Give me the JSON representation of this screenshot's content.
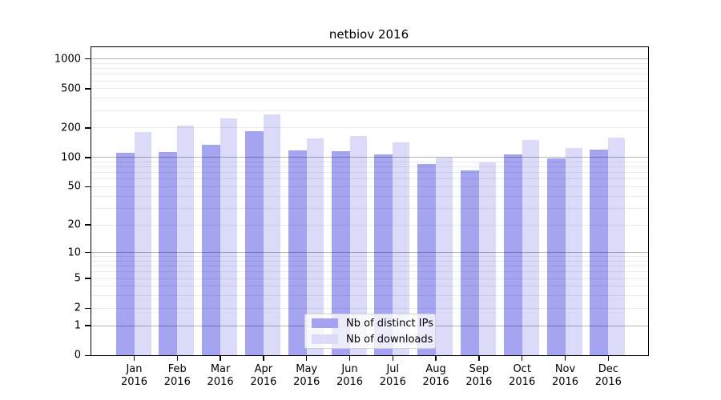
{
  "chart_data": {
    "type": "bar",
    "title": "netbiov 2016",
    "categories": [
      "Jan",
      "Feb",
      "Mar",
      "Apr",
      "May",
      "Jun",
      "Jul",
      "Aug",
      "Sep",
      "Oct",
      "Nov",
      "Dec"
    ],
    "category_year": "2016",
    "series": [
      {
        "name": "Nb of distinct IPs",
        "color": "#a4a4f0",
        "values": [
          110,
          114,
          135,
          184,
          117,
          115,
          107,
          85,
          73,
          106,
          97,
          119
        ]
      },
      {
        "name": "Nb of downloads",
        "color": "#dbdbf9",
        "values": [
          180,
          210,
          250,
          273,
          156,
          164,
          142,
          99,
          88,
          149,
          123,
          157
        ]
      }
    ],
    "y_axis": {
      "scale": "log10(1+y)",
      "ticks": [
        0,
        1,
        2,
        5,
        10,
        20,
        50,
        100,
        200,
        500,
        1000
      ],
      "range": [
        0,
        1300
      ],
      "major_gridline_values": [
        1,
        10,
        100,
        1000
      ],
      "grid": true
    },
    "legend": {
      "position": "lower-center"
    },
    "colors": {
      "major_grid": "#b5b5b5",
      "minor_grid": "#ebebeb",
      "axis": "#000000",
      "background": "#ffffff"
    }
  }
}
